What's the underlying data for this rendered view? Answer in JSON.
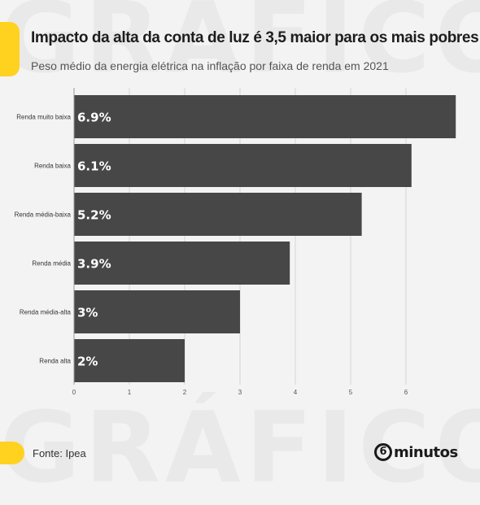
{
  "header": {
    "title": "Impacto da alta da conta de luz é 3,5 maior para os mais pobres",
    "subtitle": "Peso médio da energia elétrica na inflação por faixa de renda em 2021"
  },
  "watermark": {
    "text": "GRÁFICO"
  },
  "footer": {
    "source": "Fonte: Ipea",
    "brand_number": "6",
    "brand_word": "minutos"
  },
  "colors": {
    "bar": "#474747",
    "accent": "#ffd21f",
    "background": "#f3f3f3"
  },
  "chart_data": {
    "type": "bar",
    "orientation": "horizontal",
    "categories": [
      "Renda muito baixa",
      "Renda baixa",
      "Renda média-baixa",
      "Renda média",
      "Renda média-alta",
      "Renda alta"
    ],
    "values": [
      6.9,
      6.1,
      5.2,
      3.9,
      3.0,
      2.0
    ],
    "value_labels": [
      "6.9%",
      "6.1%",
      "5.2%",
      "3.9%",
      "3%",
      "2%"
    ],
    "x_ticks": [
      "0",
      "1",
      "2",
      "3",
      "4",
      "5",
      "6"
    ],
    "xlim": [
      0,
      7
    ],
    "grid": true
  }
}
